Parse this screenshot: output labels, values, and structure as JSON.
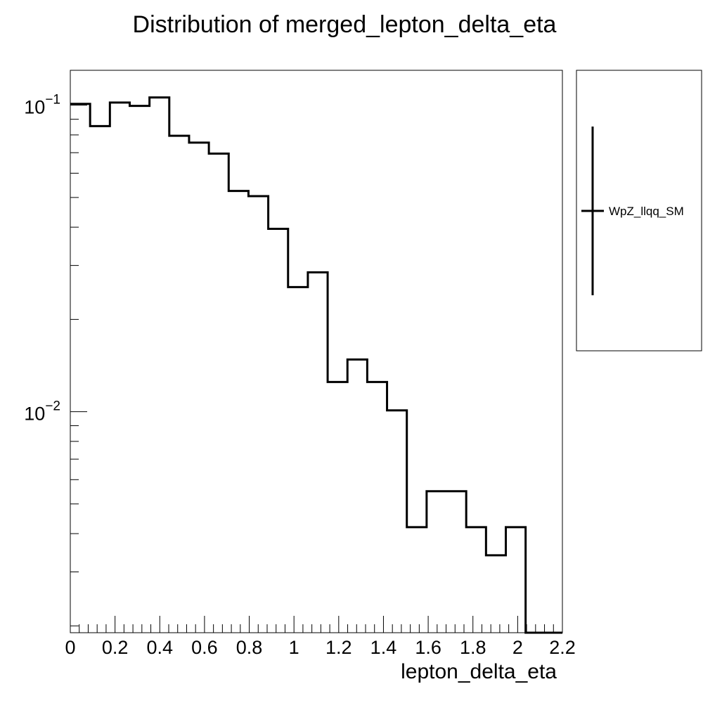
{
  "chart_data": {
    "type": "histogram",
    "title": "Distribution of merged_lepton_delta_eta",
    "xlabel": "lepton_delta_eta",
    "ylabel": "",
    "xlim": [
      0,
      2.2
    ],
    "ylim": [
      0.0019,
      0.13
    ],
    "y_scale": "log",
    "grid": false,
    "legend_position": "right",
    "x_ticks": [
      "0",
      "0.2",
      "0.4",
      "0.6",
      "0.8",
      "1",
      "1.2",
      "1.4",
      "1.6",
      "1.8",
      "2",
      "2.2"
    ],
    "y_ticks": [
      {
        "value": 0.1,
        "base": "10",
        "exponent": "−1"
      },
      {
        "value": 0.01,
        "base": "10",
        "exponent": "−2"
      }
    ],
    "bin_edges": [
      0,
      0.0885,
      0.177,
      0.2655,
      0.354,
      0.4425,
      0.531,
      0.6195,
      0.708,
      0.7965,
      0.885,
      0.9735,
      1.062,
      1.1505,
      1.239,
      1.3275,
      1.416,
      1.5045,
      1.593,
      1.6815,
      1.77,
      1.8585,
      1.947,
      2.0355,
      2.124,
      2.2
    ],
    "series": [
      {
        "name": "WpZ_llqq_SM",
        "color": "#000000",
        "values": [
          0.101,
          0.0855,
          0.102,
          0.0995,
          0.106,
          0.0795,
          0.0755,
          0.0695,
          0.0525,
          0.0505,
          0.0395,
          0.0255,
          0.0285,
          0.0125,
          0.0148,
          0.0125,
          0.0101,
          0.0042,
          0.0055,
          0.0055,
          0.0042,
          0.0034,
          0.0042,
          0.0019,
          0.0019
        ]
      }
    ]
  }
}
